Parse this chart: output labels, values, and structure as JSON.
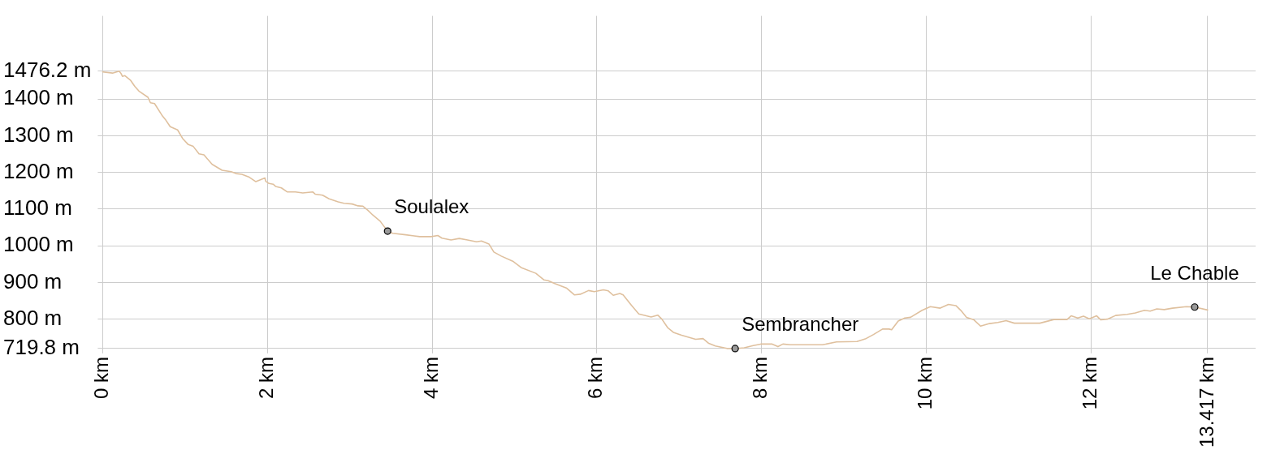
{
  "chart_data": {
    "type": "line",
    "xlim": [
      0,
      14
    ],
    "ylim": [
      719.8,
      1627
    ],
    "xticks": [
      {
        "value": 0,
        "label": "0 km"
      },
      {
        "value": 2,
        "label": "2 km"
      },
      {
        "value": 4,
        "label": "4 km"
      },
      {
        "value": 6,
        "label": "6 km"
      },
      {
        "value": 8,
        "label": "8 km"
      },
      {
        "value": 10,
        "label": "10 km"
      },
      {
        "value": 12,
        "label": "12 km"
      },
      {
        "value": 13.417,
        "label": "13.417 km"
      }
    ],
    "yticks": [
      {
        "value": 719.8,
        "label": "719.8 m"
      },
      {
        "value": 800,
        "label": "800 m"
      },
      {
        "value": 900,
        "label": "900 m"
      },
      {
        "value": 1000,
        "label": "1000 m"
      },
      {
        "value": 1100,
        "label": "1100 m"
      },
      {
        "value": 1200,
        "label": "1200 m"
      },
      {
        "value": 1300,
        "label": "1300 m"
      },
      {
        "value": 1400,
        "label": "1400 m"
      },
      {
        "value": 1476.2,
        "label": "1476.2 m"
      }
    ],
    "grid": true,
    "series": [
      {
        "color": "#dfc09e",
        "marker": "none",
        "x": [
          0,
          0.12,
          0.2,
          0.22,
          0.24,
          0.27,
          0.34,
          0.39,
          0.44,
          0.55,
          0.58,
          0.63,
          0.72,
          0.76,
          0.82,
          0.91,
          0.97,
          1.04,
          1.1,
          1.17,
          1.23,
          1.33,
          1.45,
          1.56,
          1.62,
          1.69,
          1.78,
          1.86,
          1.97,
          1.98,
          2.02,
          2.07,
          2.1,
          2.17,
          2.24,
          2.34,
          2.43,
          2.55,
          2.58,
          2.67,
          2.75,
          2.86,
          2.93,
          3.03,
          3.1,
          3.16,
          3.22,
          3.28,
          3.37,
          3.46,
          3.52,
          3.68,
          3.85,
          3.99,
          4.07,
          4.12,
          4.23,
          4.33,
          4.43,
          4.54,
          4.6,
          4.69,
          4.75,
          4.84,
          4.98,
          5.08,
          5.26,
          5.36,
          5.41,
          5.49,
          5.63,
          5.73,
          5.8,
          5.9,
          5.97,
          6.08,
          6.14,
          6.2,
          6.28,
          6.32,
          6.42,
          6.51,
          6.66,
          6.74,
          6.79,
          6.86,
          6.93,
          7.03,
          7.2,
          7.29,
          7.36,
          7.44,
          7.58,
          7.68,
          7.79,
          7.9,
          7.99,
          8.13,
          8.2,
          8.26,
          8.35,
          8.74,
          8.91,
          9.16,
          9.26,
          9.36,
          9.47,
          9.55,
          9.58,
          9.66,
          9.74,
          9.81,
          9.95,
          10.05,
          10.17,
          10.27,
          10.36,
          10.42,
          10.49,
          10.58,
          10.66,
          10.77,
          10.87,
          10.97,
          11.07,
          11.21,
          11.38,
          11.55,
          11.71,
          11.76,
          11.84,
          11.91,
          11.98,
          12.07,
          12.12,
          12.2,
          12.3,
          12.44,
          12.54,
          12.65,
          12.72,
          12.8,
          12.89,
          12.99,
          13.16,
          13.26,
          13.417
        ],
        "values": [
          1474,
          1471,
          1476.2,
          1471,
          1462,
          1464,
          1451,
          1435,
          1422,
          1405,
          1390,
          1388,
          1356,
          1345,
          1325,
          1316,
          1293,
          1276,
          1271,
          1251,
          1248,
          1222,
          1206,
          1202,
          1197,
          1195,
          1187,
          1175,
          1185,
          1176,
          1170,
          1168,
          1162,
          1158,
          1147,
          1147,
          1144,
          1147,
          1141,
          1138,
          1128,
          1120,
          1116,
          1114,
          1109,
          1108,
          1097,
          1084,
          1067,
          1040,
          1034,
          1030,
          1025,
          1025,
          1028,
          1021,
          1016,
          1020,
          1016,
          1011,
          1013,
          1005,
          983,
          972,
          958,
          941,
          925,
          907,
          905,
          897,
          885,
          866,
          868,
          878,
          875,
          880,
          877,
          865,
          870,
          866,
          838,
          814,
          806,
          811,
          800,
          777,
          764,
          756,
          745,
          747,
          734,
          727,
          720,
          719.8,
          722,
          728,
          732,
          732,
          725,
          732,
          730,
          730,
          738,
          739,
          746,
          758,
          773,
          773,
          771,
          795,
          803,
          805,
          824,
          834,
          830,
          840,
          837,
          824,
          805,
          798,
          781,
          788,
          791,
          796,
          789,
          789,
          789,
          799,
          799,
          809,
          803,
          808,
          801,
          809,
          798,
          800,
          810,
          813,
          817,
          824,
          822,
          828,
          826,
          830,
          834,
          833,
          825
        ]
      },
      {
        "type": "scatter",
        "color": "#999999",
        "marker": "circle",
        "x": [
          3.46,
          7.68,
          13.26
        ],
        "values": [
          1040,
          719.8,
          833
        ]
      }
    ],
    "annotations": [
      {
        "text": "Soulalex",
        "x": 3.46,
        "y": 1040
      },
      {
        "text": "Sembrancher",
        "x": 7.68,
        "y": 719.8
      },
      {
        "text": "Le Chable",
        "x": 13.26,
        "y": 833
      }
    ]
  }
}
